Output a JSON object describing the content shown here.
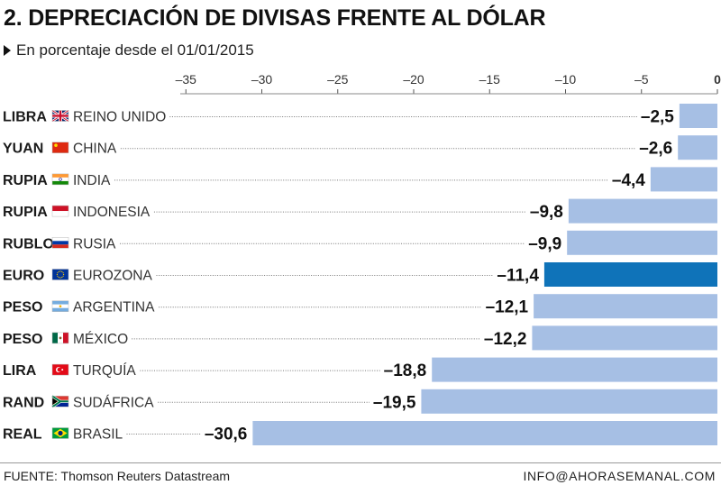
{
  "title": "2. DEPRECIACIÓN DE DIVISAS FRENTE AL DÓLAR",
  "subtitle": "En porcentaje desde el 01/01/2015",
  "footer": {
    "source": "FUENTE: Thomson Reuters Datastream",
    "contact": "INFO@AHORASEMANAL.COM"
  },
  "colors": {
    "bar": "#a6bfe4",
    "highlight": "#0f73b9",
    "leader": "#777777",
    "text": "#1a1a1a"
  },
  "chart_data": {
    "type": "bar",
    "orientation": "horizontal",
    "xlim": [
      -36,
      0
    ],
    "ticks": [
      -35,
      -30,
      -25,
      -20,
      -15,
      -10,
      -5,
      0
    ],
    "tick_labels": [
      "–35",
      "–30",
      "–25",
      "–20",
      "–15",
      "–10",
      "–5",
      "0"
    ],
    "highlight_index": 5,
    "rows": [
      {
        "currency": "LIBRA",
        "country": "REINO UNIDO",
        "flag": "uk-flag-icon",
        "value": -2.5,
        "label": "–2,5"
      },
      {
        "currency": "YUAN",
        "country": "CHINA",
        "flag": "china-flag-icon",
        "value": -2.6,
        "label": "–2,6"
      },
      {
        "currency": "RUPIA",
        "country": "INDIA",
        "flag": "india-flag-icon",
        "value": -4.4,
        "label": "–4,4"
      },
      {
        "currency": "RUPIA",
        "country": "INDONESIA",
        "flag": "indonesia-flag-icon",
        "value": -9.8,
        "label": "–9,8"
      },
      {
        "currency": "RUBLO",
        "country": "RUSIA",
        "flag": "russia-flag-icon",
        "value": -9.9,
        "label": "–9,9"
      },
      {
        "currency": "EURO",
        "country": "EUROZONA",
        "flag": "eu-flag-icon",
        "value": -11.4,
        "label": "–11,4"
      },
      {
        "currency": "PESO",
        "country": "ARGENTINA",
        "flag": "argentina-flag-icon",
        "value": -12.1,
        "label": "–12,1"
      },
      {
        "currency": "PESO",
        "country": "MÉXICO",
        "flag": "mexico-flag-icon",
        "value": -12.2,
        "label": "–12,2"
      },
      {
        "currency": "LIRA",
        "country": "TURQUÍA",
        "flag": "turkey-flag-icon",
        "value": -18.8,
        "label": "–18,8"
      },
      {
        "currency": "RAND",
        "country": "SUDÁFRICA",
        "flag": "south-africa-flag-icon",
        "value": -19.5,
        "label": "–19,5"
      },
      {
        "currency": "REAL",
        "country": "BRASIL",
        "flag": "brazil-flag-icon",
        "value": -30.6,
        "label": "–30,6"
      }
    ]
  }
}
